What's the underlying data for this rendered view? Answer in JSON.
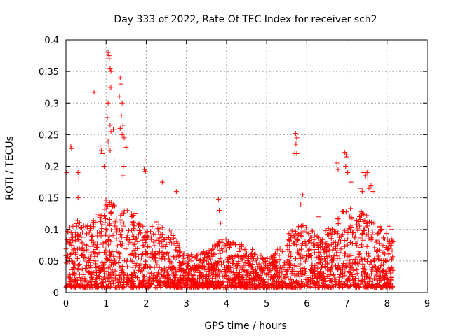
{
  "chart_data": {
    "type": "scatter",
    "title": "Day 333 of 2022, Rate Of TEC Index for receiver sch2",
    "xlabel": "GPS time / hours",
    "ylabel": "ROTI / TECUs",
    "xlim": [
      0,
      9
    ],
    "ylim": [
      0,
      0.4
    ],
    "x_ticks": [
      "0",
      "1",
      "2",
      "3",
      "4",
      "5",
      "6",
      "7",
      "8",
      "9"
    ],
    "y_ticks": [
      "0",
      "0.05",
      "0.1",
      "0.15",
      "0.2",
      "0.25",
      "0.3",
      "0.35",
      "0.4"
    ],
    "grid": true,
    "marker": "+",
    "color": "#ff0000",
    "x_range_of_data": [
      0,
      8.15
    ],
    "series": [
      {
        "points": [
          [
            0.02,
            0.19
          ],
          [
            0.12,
            0.232
          ],
          [
            0.14,
            0.228
          ],
          [
            0.3,
            0.19
          ],
          [
            0.32,
            0.18
          ],
          [
            0.3,
            0.15
          ],
          [
            0.7,
            0.317
          ],
          [
            0.85,
            0.232
          ],
          [
            0.88,
            0.225
          ],
          [
            0.9,
            0.22
          ],
          [
            0.95,
            0.2
          ],
          [
            1.05,
            0.38
          ],
          [
            1.07,
            0.375
          ],
          [
            1.08,
            0.37
          ],
          [
            1.1,
            0.355
          ],
          [
            1.12,
            0.35
          ],
          [
            1.08,
            0.325
          ],
          [
            1.12,
            0.325
          ],
          [
            1.05,
            0.3
          ],
          [
            1.03,
            0.277
          ],
          [
            1.1,
            0.265
          ],
          [
            1.12,
            0.255
          ],
          [
            1.05,
            0.24
          ],
          [
            1.07,
            0.232
          ],
          [
            1.1,
            0.225
          ],
          [
            1.18,
            0.258
          ],
          [
            1.2,
            0.21
          ],
          [
            1.35,
            0.34
          ],
          [
            1.37,
            0.33
          ],
          [
            1.33,
            0.31
          ],
          [
            1.4,
            0.3
          ],
          [
            1.38,
            0.28
          ],
          [
            1.42,
            0.265
          ],
          [
            1.35,
            0.26
          ],
          [
            1.4,
            0.25
          ],
          [
            1.45,
            0.245
          ],
          [
            1.5,
            0.23
          ],
          [
            1.43,
            0.2
          ],
          [
            1.42,
            0.185
          ],
          [
            1.97,
            0.21
          ],
          [
            1.95,
            0.195
          ],
          [
            1.98,
            0.192
          ],
          [
            2.4,
            0.175
          ],
          [
            2.75,
            0.16
          ],
          [
            3.8,
            0.148
          ],
          [
            3.82,
            0.13
          ],
          [
            3.85,
            0.11
          ],
          [
            5.72,
            0.252
          ],
          [
            5.75,
            0.245
          ],
          [
            5.73,
            0.235
          ],
          [
            5.7,
            0.22
          ],
          [
            5.75,
            0.22
          ],
          [
            5.9,
            0.155
          ],
          [
            5.85,
            0.14
          ],
          [
            6.3,
            0.12
          ],
          [
            6.75,
            0.205
          ],
          [
            6.78,
            0.195
          ],
          [
            6.95,
            0.222
          ],
          [
            6.98,
            0.218
          ],
          [
            7.0,
            0.215
          ],
          [
            6.97,
            0.2
          ],
          [
            7.02,
            0.19
          ],
          [
            7.1,
            0.175
          ],
          [
            7.35,
            0.165
          ],
          [
            7.38,
            0.16
          ],
          [
            7.4,
            0.19
          ],
          [
            7.45,
            0.185
          ],
          [
            7.5,
            0.19
          ],
          [
            7.52,
            0.18
          ],
          [
            7.55,
            0.165
          ],
          [
            7.6,
            0.17
          ],
          [
            7.65,
            0.16
          ],
          [
            8.05,
            0.105
          ],
          [
            8.1,
            0.1
          ]
        ]
      }
    ]
  }
}
